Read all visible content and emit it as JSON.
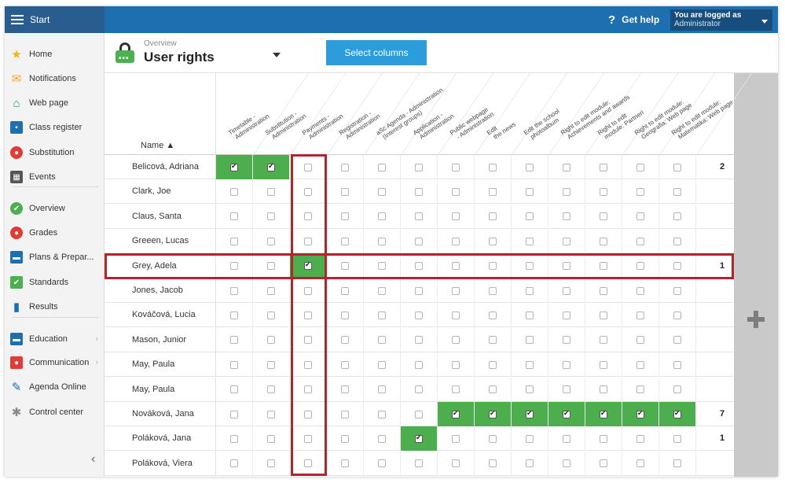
{
  "topbar": {
    "start_label": "Start",
    "help_label": "Get help",
    "help_icon": "?",
    "logged_line1": "You are logged as",
    "logged_line2": "Administrator"
  },
  "sidebar": {
    "items": [
      {
        "label": "Home",
        "icon": "star-icon",
        "color": "#f5b400"
      },
      {
        "label": "Notifications",
        "icon": "envelope-icon",
        "color": "#f5a623"
      },
      {
        "label": "Web page",
        "icon": "house-icon",
        "color": "#1e9e5a"
      },
      {
        "label": "Class register",
        "icon": "book-icon",
        "color": "#1e6fb0"
      },
      {
        "label": "Substitution",
        "icon": "person-icon",
        "color": "#e53935"
      },
      {
        "label": "Events",
        "icon": "calendar-icon",
        "color": "#555555"
      },
      {
        "label": "Overview",
        "icon": "check-circle-icon",
        "color": "#4caf50"
      },
      {
        "label": "Grades",
        "icon": "grade-icon",
        "color": "#e53935"
      },
      {
        "label": "Plans & Prepar...",
        "icon": "briefcase-icon",
        "color": "#1e6fb0"
      },
      {
        "label": "Standards",
        "icon": "shield-check-icon",
        "color": "#4caf50"
      },
      {
        "label": "Results",
        "icon": "bar-chart-icon",
        "color": "#1e6fb0"
      },
      {
        "label": "Education",
        "icon": "book-open-icon",
        "color": "#1e6fb0"
      },
      {
        "label": "Communication",
        "icon": "chat-icon",
        "color": "#e53935"
      },
      {
        "label": "Agenda Online",
        "icon": "pen-icon",
        "color": "#1e6fb0"
      },
      {
        "label": "Control center",
        "icon": "gear-icon",
        "color": "#888888"
      }
    ],
    "collapse_glyph": "‹"
  },
  "header": {
    "breadcrumb": "Overview",
    "title": "User rights",
    "select_columns": "Select columns"
  },
  "table": {
    "name_header": "Name ▲",
    "columns": [
      [
        "Timetable -",
        "Administration"
      ],
      [
        "Substitution -",
        "Administration"
      ],
      [
        "Payments -",
        "Administration"
      ],
      [
        "Registration -",
        "Administration"
      ],
      [
        "aSc Agenda - Administration",
        "(Interest groups)"
      ],
      [
        "Application -",
        "Administration"
      ],
      [
        "Public webpage",
        "- Administration"
      ],
      [
        "Edit",
        "the news"
      ],
      [
        "Edit the school",
        "photoalbum"
      ],
      [
        "Right to edit module:",
        "Achievements and awards"
      ],
      [
        "Right to edit",
        "module: Partneri"
      ],
      [
        "Right to edit module:",
        "Geografia: Web page"
      ],
      [
        "Right to edit module:",
        "Matematika: Web page"
      ]
    ],
    "rows": [
      {
        "name": "Belicová, Adriana",
        "checked": [
          0,
          1
        ],
        "count": "2"
      },
      {
        "name": "Clark, Joe",
        "checked": [],
        "count": ""
      },
      {
        "name": "Claus, Santa",
        "checked": [],
        "count": ""
      },
      {
        "name": "Greeen, Lucas",
        "checked": [],
        "count": ""
      },
      {
        "name": "Grey, Adela",
        "checked": [
          2
        ],
        "count": "1"
      },
      {
        "name": "Jones, Jacob",
        "checked": [],
        "count": ""
      },
      {
        "name": "Kováčová, Lucia",
        "checked": [],
        "count": ""
      },
      {
        "name": "Mason, Junior",
        "checked": [],
        "count": ""
      },
      {
        "name": "May, Paula",
        "checked": [],
        "count": ""
      },
      {
        "name": "May, Paula",
        "checked": [],
        "count": ""
      },
      {
        "name": "Nováková, Jana",
        "checked": [
          6,
          7,
          8,
          9,
          10,
          11,
          12
        ],
        "count": "7"
      },
      {
        "name": "Poláková, Jana",
        "checked": [
          5
        ],
        "count": "1"
      },
      {
        "name": "Poláková, Viera",
        "checked": [],
        "count": ""
      }
    ]
  },
  "colors": {
    "topbar": "#1e6fb0",
    "accent_button": "#2d9cdb",
    "checked_cell": "#4cae4c",
    "highlight": "#b4242a"
  }
}
